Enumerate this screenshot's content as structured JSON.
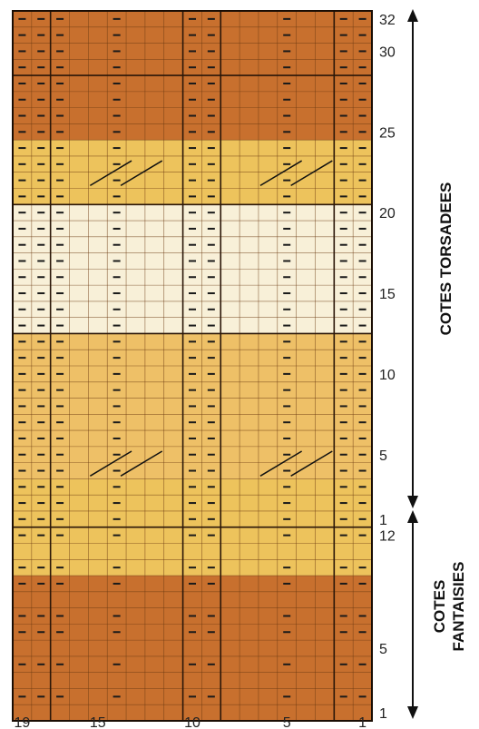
{
  "chart": {
    "columns": 19,
    "rows": 44,
    "purl_symbol": "−",
    "bands": [
      {
        "from_row": 1,
        "to_row": 9,
        "color": "#C8702E"
      },
      {
        "from_row": 10,
        "to_row": 15,
        "color": "#EDC35C"
      },
      {
        "from_row": 16,
        "to_row": 24,
        "color": "#EEC067"
      },
      {
        "from_row": 25,
        "to_row": 32,
        "color": "#F8F0D8"
      },
      {
        "from_row": 33,
        "to_row": 36,
        "color": "#EDC35C"
      },
      {
        "from_row": 37,
        "to_row": 44,
        "color": "#C8702E"
      }
    ],
    "purl_columns_full": [
      1,
      2,
      5,
      9,
      10,
      14,
      17,
      18,
      19
    ],
    "purl_columns_fancy": [
      1,
      2,
      5,
      9,
      10,
      14,
      17,
      18,
      19
    ],
    "fancy_plain_rows": [
      1,
      3,
      5,
      8,
      11
    ],
    "cable_rows": [
      16,
      34
    ],
    "cable_groups": [
      [
        3,
        6
      ],
      [
        12,
        15
      ]
    ],
    "thick_rows": [
      12,
      24,
      32,
      40
    ],
    "thick_cols": [
      2,
      8,
      10,
      17
    ],
    "sections": [
      {
        "label": "COTES TORSADEES",
        "from_row": 13,
        "to_row": 44
      },
      {
        "label": "COTES FANTAISIES",
        "from_row": 1,
        "to_row": 12
      }
    ]
  },
  "row_labels": [
    {
      "text": "1",
      "row": 1
    },
    {
      "text": "5",
      "row": 5
    },
    {
      "text": "12",
      "row": 12
    },
    {
      "text": "1",
      "row": 13
    },
    {
      "text": "5",
      "row": 17
    },
    {
      "text": "10",
      "row": 22
    },
    {
      "text": "15",
      "row": 27
    },
    {
      "text": "20",
      "row": 32
    },
    {
      "text": "25",
      "row": 37
    },
    {
      "text": "30",
      "row": 42
    },
    {
      "text": "32",
      "row": 44
    }
  ],
  "col_labels": [
    {
      "text": "19",
      "col": 19
    },
    {
      "text": "15",
      "col": 15
    },
    {
      "text": "10",
      "col": 10
    },
    {
      "text": "5",
      "col": 5
    },
    {
      "text": "1",
      "col": 1
    }
  ],
  "section_titles": {
    "torsadees": "COTES TORSADEES",
    "fantaisies_line1": "COTES",
    "fantaisies_line2": "FANTAISIES"
  }
}
